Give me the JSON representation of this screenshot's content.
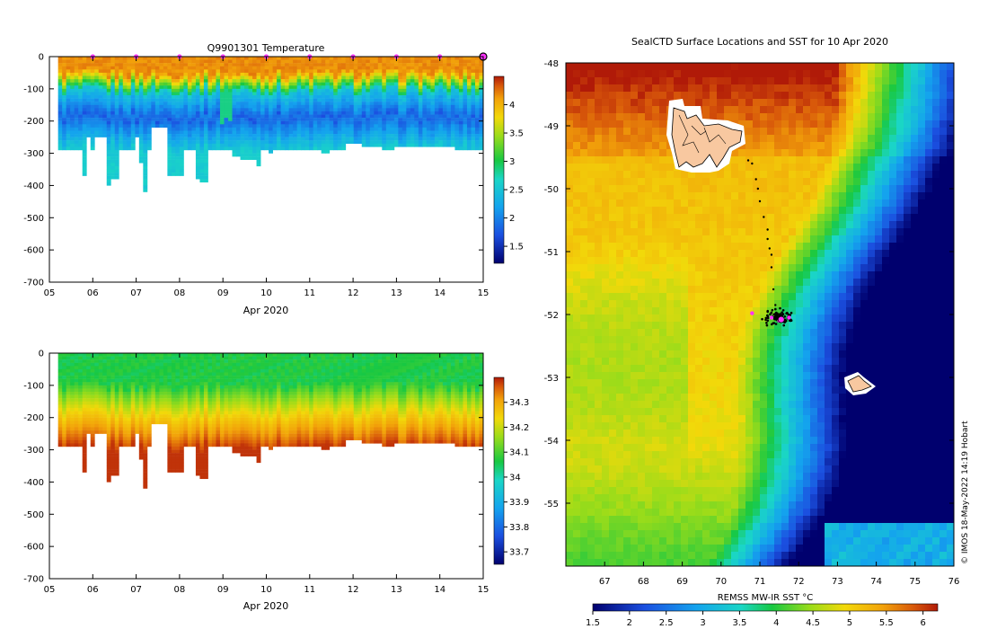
{
  "credit": "© IMOS 18-May-2022 14:19 Hobart",
  "chart_data": [
    {
      "type": "heatmap",
      "name": "temperature-section",
      "title": "Q9901301  Temperature",
      "xlabel": "Apr 2020",
      "ylabel": "",
      "x_ticks": [
        "05",
        "06",
        "07",
        "08",
        "09",
        "10",
        "11",
        "12",
        "13",
        "14",
        "15"
      ],
      "y_ticks": [
        0,
        -100,
        -200,
        -300,
        -400,
        -500,
        -600,
        -700
      ],
      "xlim": [
        5,
        15
      ],
      "ylim": [
        -700,
        0
      ],
      "colorbar": {
        "min": 1.2,
        "max": 4.5,
        "ticks": [
          1.5,
          2,
          2.5,
          3,
          3.5,
          4
        ],
        "tick_labels": [
          "1.5",
          "2",
          "2.5",
          "3",
          "3.5",
          "4"
        ]
      },
      "profiles_max_depth": [
        300,
        300,
        300,
        300,
        300,
        300,
        380,
        260,
        300,
        260,
        260,
        260,
        410,
        390,
        390,
        300,
        300,
        300,
        300,
        255,
        340,
        430,
        300,
        230,
        230,
        230,
        230,
        375,
        375,
        375,
        375,
        300,
        300,
        300,
        390,
        400,
        400,
        300,
        300,
        300,
        300,
        300,
        300,
        320,
        320,
        325,
        325,
        330,
        330,
        350,
        300,
        300,
        310,
        300,
        300,
        300,
        300,
        300,
        300,
        300,
        300,
        300,
        300,
        300,
        300,
        305,
        305,
        300,
        300,
        300,
        300,
        280,
        280,
        280,
        280,
        290,
        290,
        290,
        290,
        290,
        300,
        300,
        300,
        290,
        290,
        290,
        290,
        290,
        290,
        290,
        290,
        290,
        290,
        290,
        290,
        290,
        290,
        290,
        300,
        300,
        300,
        300,
        300,
        300,
        300
      ]
    },
    {
      "type": "heatmap",
      "name": "salinity-section",
      "title": "",
      "xlabel": "Apr 2020",
      "ylabel": "",
      "x_ticks": [
        "05",
        "06",
        "07",
        "08",
        "09",
        "10",
        "11",
        "12",
        "13",
        "14",
        "15"
      ],
      "y_ticks": [
        0,
        -100,
        -200,
        -300,
        -400,
        -500,
        -600,
        -700
      ],
      "xlim": [
        5,
        15
      ],
      "ylim": [
        -700,
        0
      ],
      "colorbar": {
        "min": 33.65,
        "max": 34.4,
        "ticks": [
          33.7,
          33.8,
          33.9,
          34,
          34.1,
          34.2,
          34.3
        ],
        "tick_labels": [
          "33.7",
          "33.8",
          "33.9",
          "34",
          "34.1",
          "34.2",
          "34.3"
        ]
      }
    },
    {
      "type": "heatmap",
      "name": "sst-map",
      "title": "SealCTD Surface Locations and SST for 10 Apr 2020",
      "xlabel": "",
      "ylabel": "",
      "xlim": [
        66,
        76
      ],
      "ylim": [
        -56,
        -48
      ],
      "x_ticks": [
        "67",
        "68",
        "69",
        "70",
        "71",
        "72",
        "73",
        "74",
        "75",
        "76"
      ],
      "y_ticks": [
        "-48",
        "-49",
        "-50",
        "-51",
        "-52",
        "-53",
        "-54",
        "-55"
      ],
      "colorbar": {
        "label": "REMSS MW-IR SST °C",
        "min": 1.5,
        "max": 6.2,
        "ticks": [
          1.5,
          2,
          2.5,
          3,
          3.5,
          4,
          4.5,
          5,
          5.5,
          6
        ],
        "tick_labels": [
          "1.5",
          "2",
          "2.5",
          "3",
          "3.5",
          "4",
          "4.5",
          "5",
          "5.5",
          "6"
        ]
      },
      "track": [
        [
          70.7,
          -49.55
        ],
        [
          70.8,
          -49.6
        ],
        [
          70.9,
          -49.85
        ],
        [
          70.95,
          -50.0
        ],
        [
          71.0,
          -50.2
        ],
        [
          71.1,
          -50.45
        ],
        [
          71.2,
          -50.65
        ],
        [
          71.2,
          -50.8
        ],
        [
          71.25,
          -50.95
        ],
        [
          71.3,
          -51.05
        ],
        [
          71.3,
          -51.25
        ],
        [
          71.35,
          -51.6
        ],
        [
          71.4,
          -51.85
        ],
        [
          71.45,
          -52.0
        ]
      ],
      "cluster_center": [
        71.45,
        -52.05
      ],
      "pink_points": [
        [
          70.8,
          -51.98
        ],
        [
          71.3,
          -52.05
        ],
        [
          71.5,
          -52.1
        ],
        [
          71.75,
          -52.05
        ],
        [
          71.55,
          -52.08
        ]
      ]
    }
  ]
}
